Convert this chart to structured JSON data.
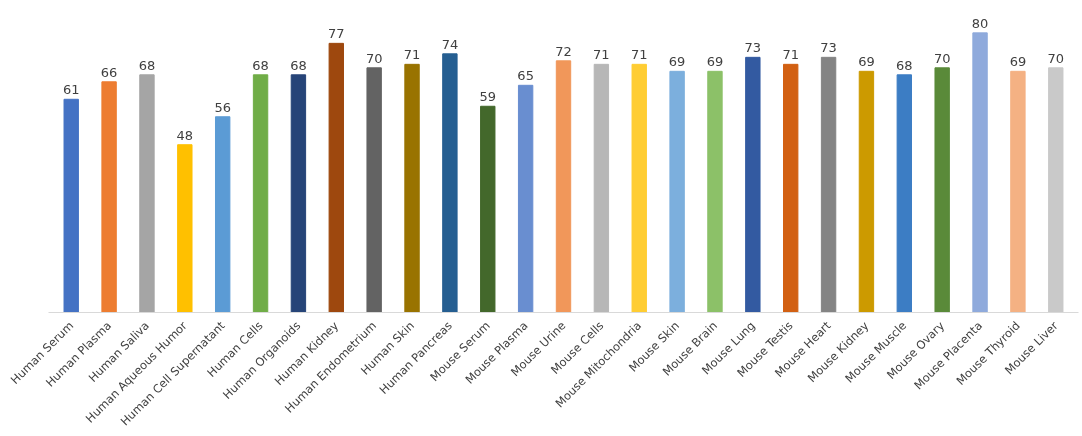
{
  "chart_data": {
    "type": "bar",
    "categories": [
      "Human Serum",
      "Human Plasma",
      "Human Saliva",
      "Human Aqueous Humor",
      "Human Cell Supernatant",
      "Human Cells",
      "Human Organoids",
      "Human Kidney",
      "Human Endometrium",
      "Human Skin",
      "Human Pancreas",
      "Mouse Serum",
      "Mouse Plasma",
      "Mouse Urine",
      "Mouse Cells",
      "Mouse Mitochondria",
      "Mouse Skin",
      "Mouse Brain",
      "Mouse Lung",
      "Mouse Testis",
      "Mouse Heart",
      "Mouse Kidney",
      "Mouse Muscle",
      "Mouse Ovary",
      "Mouse Placenta",
      "Mouse Thyroid",
      "Mouse Liver"
    ],
    "values": [
      61,
      66,
      68,
      48,
      56,
      68,
      68,
      77,
      70,
      71,
      74,
      59,
      65,
      72,
      71,
      71,
      69,
      69,
      73,
      71,
      73,
      69,
      68,
      70,
      80,
      69,
      70
    ],
    "colors": [
      "#4472c4",
      "#ed7d31",
      "#a5a5a5",
      "#ffc000",
      "#5b9bd5",
      "#70ad47",
      "#264478",
      "#9e480e",
      "#636363",
      "#997300",
      "#255e91",
      "#43682b",
      "#698ed0",
      "#f1975a",
      "#b7b7b7",
      "#ffcd33",
      "#7cafdd",
      "#8cc168",
      "#335aa1",
      "#d26012",
      "#848484",
      "#cc9a00",
      "#3c7dc4",
      "#5a8a39",
      "#8faadc",
      "#f4b183",
      "#c9c9c9"
    ],
    "data_labels": true,
    "tick_labels": "x",
    "grid": false
  }
}
